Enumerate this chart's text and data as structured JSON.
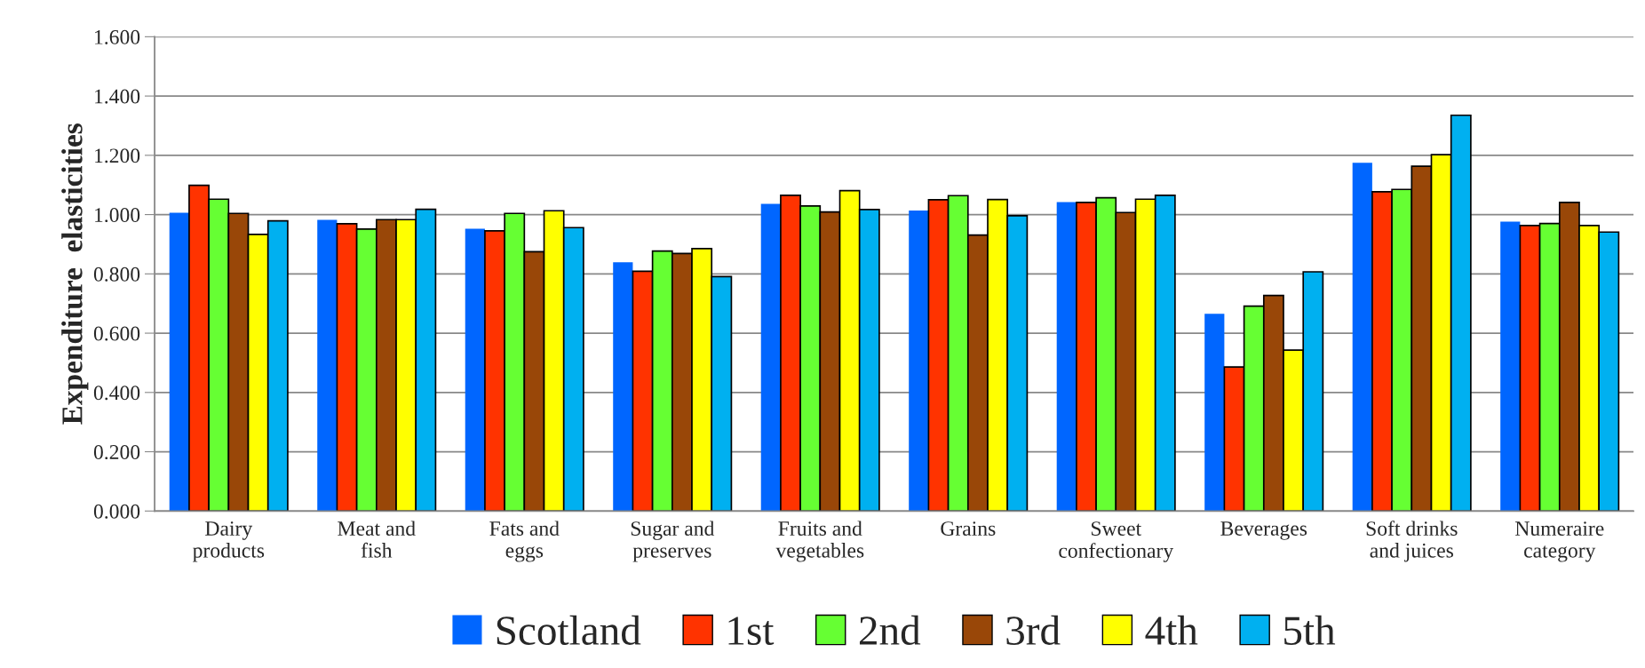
{
  "chart_data": {
    "type": "bar",
    "ylabel": "Expenditure  elasticities",
    "categories": [
      "Dairy\nproducts",
      "Meat and\nfish",
      "Fats and\neggs",
      "Sugar and\npreserves",
      "Fruits and\nvegetables",
      "Grains",
      "Sweet\nconfectionary",
      "Beverages",
      "Soft drinks\nand juices",
      "Numeraire\ncategory"
    ],
    "series": [
      {
        "name": "Scotland",
        "color": "#0066ff",
        "values": [
          1.006,
          0.982,
          0.952,
          0.839,
          1.036,
          1.014,
          1.042,
          0.665,
          1.175,
          0.976
        ]
      },
      {
        "name": "1st",
        "color": "#ff3300",
        "values": [
          1.099,
          0.969,
          0.945,
          0.809,
          1.065,
          1.05,
          1.041,
          0.486,
          1.077,
          0.963
        ]
      },
      {
        "name": "2nd",
        "color": "#66ff33",
        "values": [
          1.052,
          0.951,
          1.004,
          0.877,
          1.029,
          1.064,
          1.057,
          0.691,
          1.085,
          0.97
        ]
      },
      {
        "name": "3rd",
        "color": "#994708",
        "values": [
          1.004,
          0.983,
          0.875,
          0.869,
          1.009,
          0.931,
          1.007,
          0.727,
          1.163,
          1.041
        ]
      },
      {
        "name": "4th",
        "color": "#ffff00",
        "values": [
          0.933,
          0.983,
          1.013,
          0.885,
          1.081,
          1.051,
          1.052,
          0.543,
          1.202,
          0.963
        ]
      },
      {
        "name": "5th",
        "color": "#00b0f0",
        "values": [
          0.979,
          1.018,
          0.956,
          0.791,
          1.017,
          0.996,
          1.065,
          0.807,
          1.335,
          0.941
        ]
      }
    ],
    "ylim": [
      0,
      1.6
    ],
    "yticks": [
      {
        "value": 0,
        "label": "0.000"
      },
      {
        "value": 0.2,
        "label": "0.200"
      },
      {
        "value": 0.4,
        "label": "0.400"
      },
      {
        "value": 0.6,
        "label": "0.600"
      },
      {
        "value": 0.8,
        "label": "0.800"
      },
      {
        "value": 1.0,
        "label": "1.000"
      },
      {
        "value": 1.2,
        "label": "1.200"
      },
      {
        "value": 1.4,
        "label": "1.400"
      },
      {
        "value": 1.6,
        "label": "1.600"
      }
    ],
    "grid": "y",
    "legend": "bottom"
  }
}
